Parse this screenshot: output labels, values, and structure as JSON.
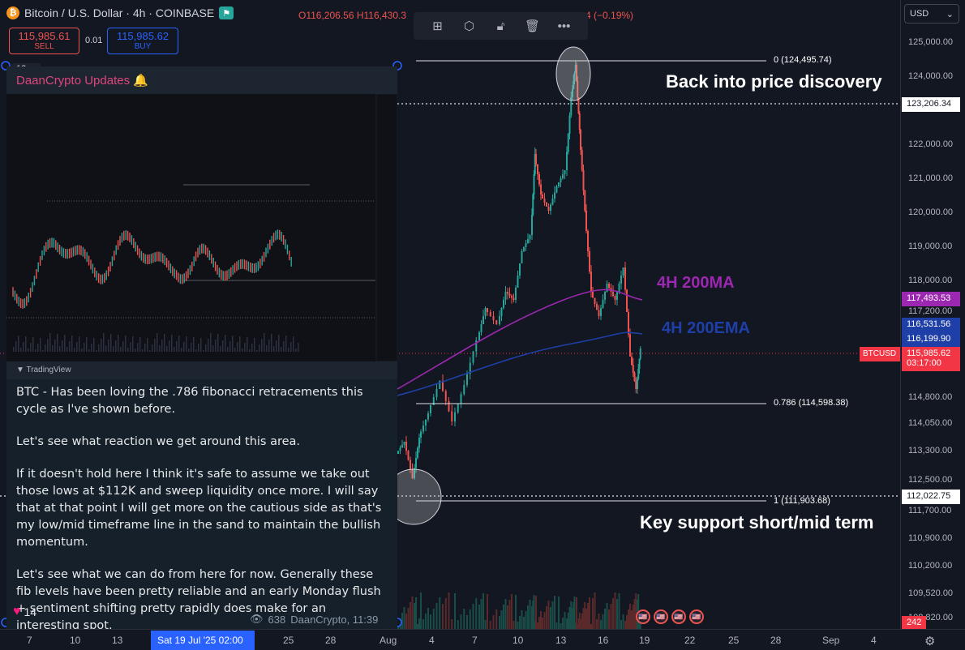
{
  "header": {
    "symbol_title": "Bitcoin / U.S. Dollar · 4h · COINBASE",
    "ohlc_label": "O116,206.56 H116,430.3",
    "change": "4 (−0.19%)",
    "sell_price": "115,985.61",
    "sell_label": "SELL",
    "buy_price": "115,985.62",
    "buy_label": "BUY",
    "spread": "0.01",
    "interval_badge": "12"
  },
  "price_scale": {
    "currency": "USD",
    "ticks": [
      "125,000.00",
      "124,000.00",
      "122,000.00",
      "121,000.00",
      "120,000.00",
      "119,000.00",
      "118,000.00",
      "117,200.00",
      "114,800.00",
      "114,050.00",
      "113,300.00",
      "112,500.00",
      "111,700.00",
      "110,900.00",
      "110,200.00",
      "109,520.00",
      "108,820.00"
    ],
    "labels": {
      "top_line": "123,206.34",
      "ma200": "117,493.53",
      "ema_a": "116,531.56",
      "ema_b": "116,199.90",
      "symbol": "BTCUSD",
      "last": "115,985.62",
      "countdown": "03:17:00",
      "support": "112,022.75",
      "volume": "242"
    },
    "colors": {
      "ma": "#9c27b0",
      "ema": "#1e3fa8",
      "last": "#f23645",
      "line": "#131722"
    }
  },
  "time_scale": {
    "ticks": [
      "7",
      "10",
      "13",
      "22",
      "25",
      "28",
      "Aug",
      "4",
      "7",
      "10",
      "13",
      "16",
      "19",
      "22",
      "25",
      "28",
      "Sep",
      "4"
    ],
    "cursor_date": "Sat 19 Jul '25   02:00"
  },
  "annotations": {
    "price_discovery": "Back into price discovery",
    "key_support": "Key support short/mid term",
    "ma_label": "4H 200MA",
    "ema_label": "4H 200EMA",
    "fib_0": "0 (124,495.74)",
    "fib_786": "0.786 (114,598.38)",
    "fib_1": "1 (111,903.68)"
  },
  "tweet": {
    "header": "DaanCrypto Updates 🔔",
    "tradingview_label": "TradingView",
    "paragraphs": [
      "BTC - Has been loving the .786 fibonacci retracements this cycle as I've shown before.",
      "Let's see what reaction we get around this area.",
      "If it doesn't hold here I think it's safe to assume we take out those lows at $112K and sweep liquidity once more. I will say that at that point I will get more on the cautious side as that's my low/mid timeframe line in the sand to maintain the bullish momentum.",
      "Let's see what we can do from here for now. Generally these fib levels have been pretty reliable and an early Monday flush + sentiment shifting pretty rapidly does make for an interesting spot."
    ],
    "likes": "14",
    "views": "638",
    "author_time": "DaanCrypto, 11:39"
  }
}
